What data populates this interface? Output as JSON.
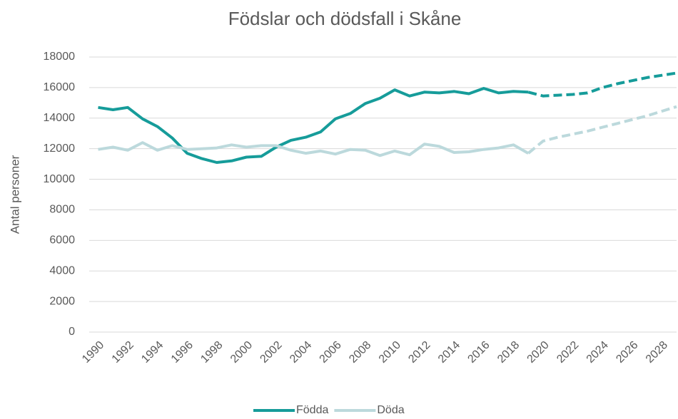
{
  "chart_data": {
    "type": "line",
    "title": "Födslar och dödsfall i Skåne",
    "y_label": "Antal personer",
    "x": [
      1990,
      1991,
      1992,
      1993,
      1994,
      1995,
      1996,
      1997,
      1998,
      1999,
      2000,
      2001,
      2002,
      2003,
      2004,
      2005,
      2006,
      2007,
      2008,
      2009,
      2010,
      2011,
      2012,
      2013,
      2014,
      2015,
      2016,
      2017,
      2018,
      2019,
      2020,
      2021,
      2022,
      2023,
      2024,
      2025,
      2026,
      2027,
      2028,
      2029
    ],
    "forecast_from": 2019,
    "series": [
      {
        "name": "Födda",
        "color": "#169c9a",
        "values": [
          14700,
          14550,
          14700,
          13950,
          13450,
          12700,
          11700,
          11350,
          11100,
          11200,
          11450,
          11500,
          12100,
          12550,
          12750,
          13100,
          13950,
          14300,
          14950,
          15300,
          15850,
          15450,
          15700,
          15650,
          15750,
          15600,
          15950,
          15650,
          15750,
          15700,
          15450,
          15500,
          15550,
          15650,
          16000,
          16250,
          16450,
          16650,
          16800,
          16950
        ]
      },
      {
        "name": "Döda",
        "color": "#bcd9dc",
        "values": [
          11950,
          12100,
          11900,
          12400,
          11900,
          12200,
          11950,
          12000,
          12050,
          12250,
          12100,
          12200,
          12200,
          11900,
          11700,
          11850,
          11650,
          11950,
          11900,
          11550,
          11850,
          11600,
          12300,
          12150,
          11750,
          11800,
          11950,
          12050,
          12250,
          11700,
          12500,
          12750,
          12950,
          13150,
          13400,
          13650,
          13900,
          14150,
          14450,
          14750
        ]
      }
    ],
    "xlim": [
      1989.4,
      2029
    ],
    "xticks": [
      1990,
      1992,
      1994,
      1996,
      1998,
      2000,
      2002,
      2004,
      2006,
      2008,
      2010,
      2012,
      2014,
      2016,
      2018,
      2020,
      2022,
      2024,
      2026,
      2028
    ],
    "ylim": [
      0,
      18000
    ],
    "yticks": [
      0,
      2000,
      4000,
      6000,
      8000,
      10000,
      12000,
      14000,
      16000,
      18000
    ],
    "grid": true,
    "legend": "bottom"
  }
}
